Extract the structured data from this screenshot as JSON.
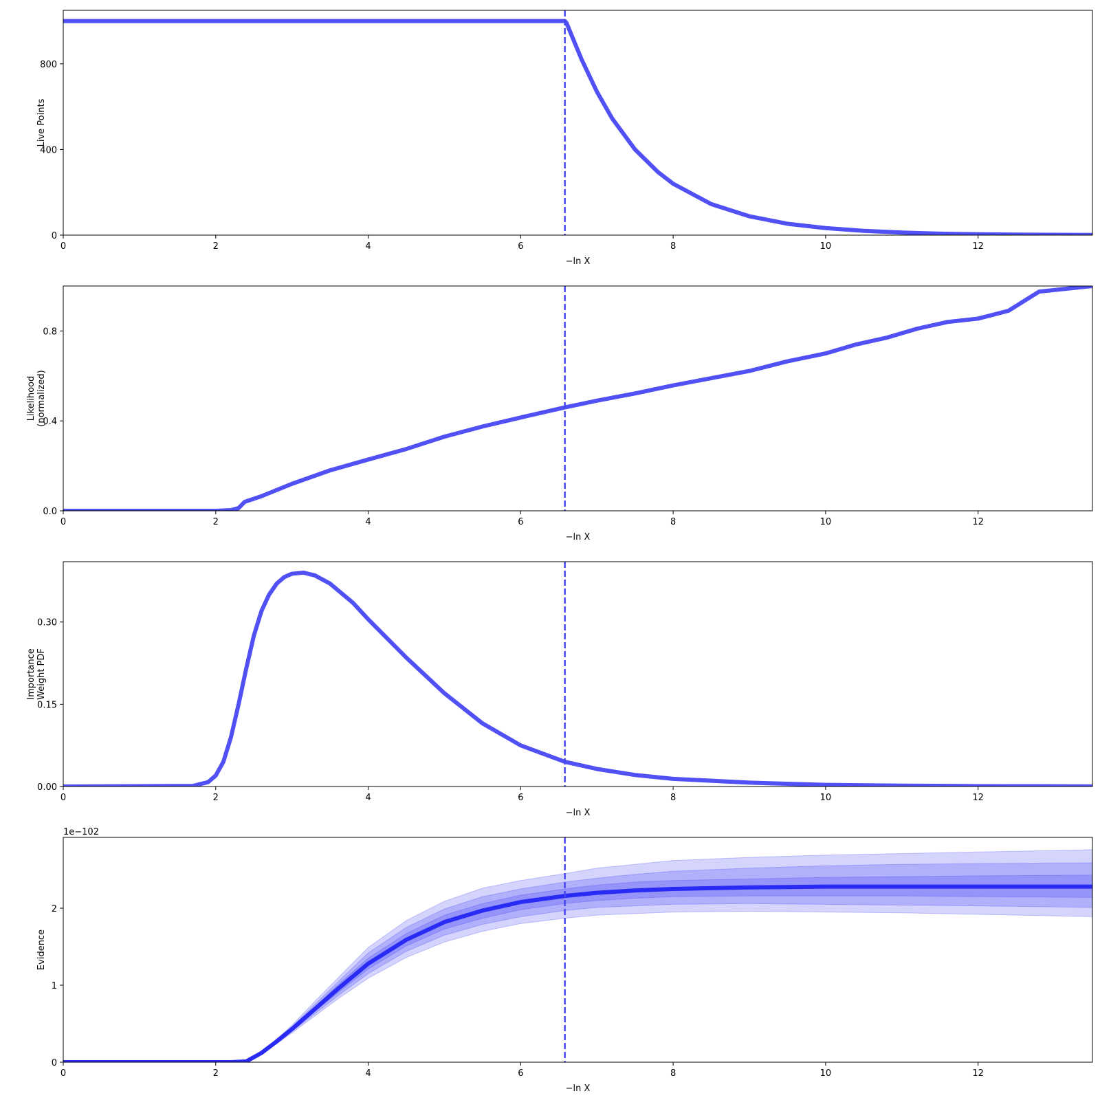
{
  "chart_data": [
    {
      "type": "line",
      "panel": "live-points",
      "xlabel": "−ln X",
      "ylabel": [
        "Live Points"
      ],
      "xlim": [
        0,
        13.5
      ],
      "ylim": [
        0,
        1050
      ],
      "xticks": [
        0,
        2,
        4,
        6,
        8,
        10,
        12
      ],
      "yticks": [
        0,
        400,
        800
      ],
      "ytick_labels": [
        "0",
        "400",
        "800"
      ],
      "grid": false,
      "vline": 6.58,
      "color": "#5050f5",
      "series": [
        {
          "x": [
            0,
            6.58,
            6.6,
            6.8,
            7.0,
            7.2,
            7.5,
            7.8,
            8.0,
            8.5,
            9.0,
            9.5,
            10.0,
            10.5,
            11.0,
            11.5,
            12.0,
            12.5,
            13.0,
            13.5
          ],
          "y": [
            1000,
            1000,
            992,
            820,
            670,
            545,
            400,
            295,
            240,
            145,
            88,
            53,
            33,
            20,
            12,
            7,
            4,
            2.5,
            1.5,
            1
          ]
        }
      ]
    },
    {
      "type": "line",
      "panel": "likelihood",
      "xlabel": "−ln X",
      "ylabel": [
        "Likelihood",
        "(normalized)"
      ],
      "xlim": [
        0,
        13.5
      ],
      "ylim": [
        0,
        1.0
      ],
      "xticks": [
        0,
        2,
        4,
        6,
        8,
        10,
        12
      ],
      "yticks": [
        0,
        0.4,
        0.8
      ],
      "ytick_labels": [
        "0.0",
        "0.4",
        "0.8"
      ],
      "grid": false,
      "vline": 6.58,
      "color": "#5050f5",
      "series": [
        {
          "x": [
            0,
            2.0,
            2.2,
            2.3,
            2.38,
            2.6,
            3.0,
            3.5,
            4.0,
            4.5,
            5.0,
            5.5,
            6.0,
            6.58,
            7.0,
            7.5,
            8.0,
            8.5,
            9.0,
            9.5,
            10.0,
            10.4,
            10.8,
            11.2,
            11.6,
            12.0,
            12.4,
            12.8,
            13.5
          ],
          "y": [
            0,
            0,
            0.003,
            0.012,
            0.04,
            0.065,
            0.12,
            0.18,
            0.228,
            0.275,
            0.33,
            0.375,
            0.415,
            0.46,
            0.49,
            0.522,
            0.558,
            0.59,
            0.622,
            0.665,
            0.7,
            0.74,
            0.77,
            0.81,
            0.84,
            0.855,
            0.89,
            0.975,
            1.0
          ]
        }
      ]
    },
    {
      "type": "line",
      "panel": "importance-weight",
      "xlabel": "−ln X",
      "ylabel": [
        "Importance",
        "Weight PDF"
      ],
      "xlim": [
        0,
        13.5
      ],
      "ylim": [
        0,
        0.41
      ],
      "xticks": [
        0,
        2,
        4,
        6,
        8,
        10,
        12
      ],
      "yticks": [
        0,
        0.15,
        0.3
      ],
      "ytick_labels": [
        "0.00",
        "0.15",
        "0.30"
      ],
      "grid": false,
      "vline": 6.58,
      "color": "#5050f5",
      "series": [
        {
          "x": [
            0,
            1.7,
            1.9,
            2.0,
            2.1,
            2.2,
            2.3,
            2.4,
            2.5,
            2.6,
            2.7,
            2.8,
            2.9,
            3.0,
            3.15,
            3.3,
            3.5,
            3.8,
            4.0,
            4.5,
            5.0,
            5.5,
            6.0,
            6.58,
            7.0,
            7.5,
            8.0,
            9.0,
            10.0,
            11.0,
            12.0,
            13.5
          ],
          "y": [
            0,
            0.001,
            0.008,
            0.02,
            0.045,
            0.09,
            0.15,
            0.215,
            0.275,
            0.32,
            0.35,
            0.37,
            0.382,
            0.388,
            0.39,
            0.385,
            0.37,
            0.335,
            0.305,
            0.235,
            0.17,
            0.115,
            0.075,
            0.045,
            0.032,
            0.021,
            0.014,
            0.007,
            0.003,
            0.0015,
            0.0007,
            0.0002
          ]
        }
      ]
    },
    {
      "type": "area",
      "panel": "evidence",
      "xlabel": "−ln X",
      "ylabel": [
        "Evidence"
      ],
      "xlim": [
        0,
        13.5
      ],
      "ylim": [
        0,
        2.92
      ],
      "xticks": [
        0,
        2,
        4,
        6,
        8,
        10,
        12
      ],
      "yticks": [
        0,
        1,
        2
      ],
      "ytick_labels": [
        "0",
        "1",
        "2"
      ],
      "offset_text": "1e−102",
      "grid": false,
      "vline": 6.58,
      "color": "#2a2af5",
      "x": [
        0,
        2.2,
        2.4,
        2.6,
        2.8,
        3.0,
        3.3,
        3.6,
        4.0,
        4.5,
        5.0,
        5.5,
        6.0,
        6.58,
        7.0,
        7.5,
        8.0,
        9.0,
        10.0,
        11.0,
        12.0,
        13.5
      ],
      "mean": [
        0,
        0,
        0.01,
        0.12,
        0.27,
        0.43,
        0.69,
        0.95,
        1.28,
        1.59,
        1.82,
        1.97,
        2.08,
        2.16,
        2.2,
        2.23,
        2.25,
        2.27,
        2.28,
        2.28,
        2.28,
        2.28
      ],
      "bands": [
        {
          "sigma": 3,
          "lower": [
            0,
            0,
            0.01,
            0.11,
            0.24,
            0.38,
            0.6,
            0.82,
            1.09,
            1.36,
            1.56,
            1.7,
            1.8,
            1.87,
            1.91,
            1.93,
            1.95,
            1.96,
            1.95,
            1.94,
            1.92,
            1.89
          ],
          "upper": [
            0,
            0,
            0.01,
            0.13,
            0.3,
            0.48,
            0.79,
            1.09,
            1.49,
            1.84,
            2.09,
            2.26,
            2.36,
            2.45,
            2.52,
            2.57,
            2.62,
            2.66,
            2.69,
            2.71,
            2.73,
            2.76
          ]
        },
        {
          "sigma": 2,
          "lower": [
            0,
            0,
            0.01,
            0.115,
            0.25,
            0.4,
            0.63,
            0.86,
            1.15,
            1.44,
            1.65,
            1.79,
            1.89,
            1.97,
            2.01,
            2.03,
            2.05,
            2.06,
            2.05,
            2.04,
            2.03,
            2.01
          ],
          "upper": [
            0,
            0,
            0.01,
            0.125,
            0.29,
            0.46,
            0.75,
            1.04,
            1.42,
            1.75,
            1.99,
            2.15,
            2.25,
            2.34,
            2.39,
            2.44,
            2.48,
            2.52,
            2.55,
            2.57,
            2.58,
            2.59
          ]
        },
        {
          "sigma": 1,
          "lower": [
            0,
            0,
            0.01,
            0.118,
            0.26,
            0.415,
            0.66,
            0.9,
            1.21,
            1.51,
            1.73,
            1.87,
            1.98,
            2.06,
            2.1,
            2.13,
            2.15,
            2.16,
            2.16,
            2.16,
            2.15,
            2.14
          ],
          "upper": [
            0,
            0,
            0.01,
            0.122,
            0.28,
            0.445,
            0.72,
            1.0,
            1.35,
            1.67,
            1.91,
            2.06,
            2.17,
            2.25,
            2.3,
            2.34,
            2.36,
            2.38,
            2.4,
            2.41,
            2.42,
            2.43
          ]
        }
      ]
    }
  ]
}
